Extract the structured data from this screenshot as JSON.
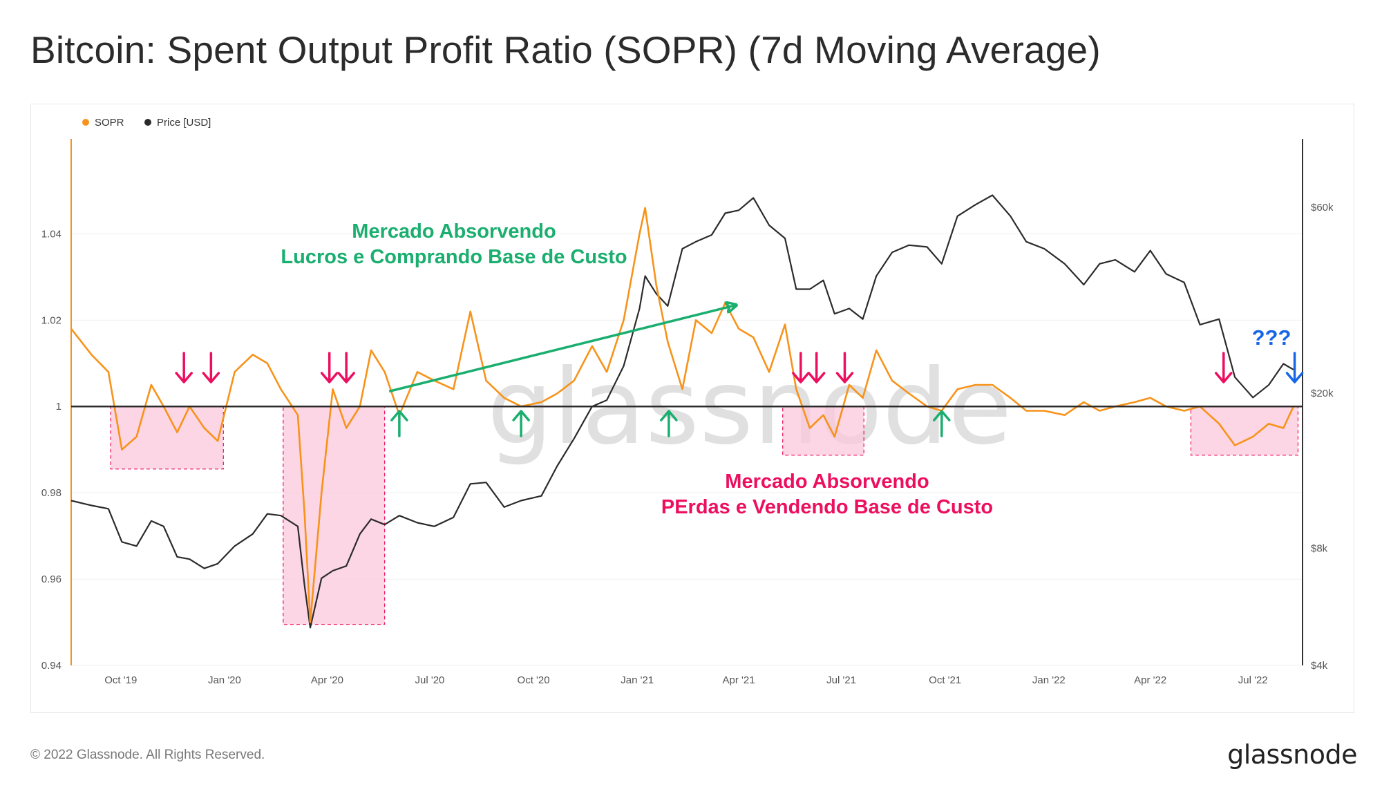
{
  "title": "Bitcoin: Spent Output Profit Ratio (SOPR) (7d Moving Average)",
  "footer": {
    "copyright": "© 2022 Glassnode. All Rights Reserved.",
    "logo": "glassnode"
  },
  "watermark": "glassnode",
  "colors": {
    "sopr": "#f7931a",
    "price": "#2b2b2b",
    "green": "#1aae6f",
    "red": "#ec0f5f",
    "blue": "#1766e8",
    "zone_fill": "#fbc8dc",
    "zone_border": "#ec0f5f"
  },
  "legend": [
    {
      "name": "SOPR",
      "color": "#f7931a"
    },
    {
      "name": "Price [USD]",
      "color": "#2b2b2b"
    }
  ],
  "annotations": {
    "green_line1": "Mercado Absorvendo",
    "green_line2": "Lucros e Comprando Base de Custo",
    "red_line1": "Mercado Absorvendo",
    "red_line2": "PErdas e Vendendo Base  de Custo",
    "question": "???"
  },
  "chart_data": {
    "type": "line",
    "x_axis": {
      "type": "date",
      "range": [
        "2019-08-18",
        "2022-08-14"
      ],
      "ticks": [
        "Oct '19",
        "Jan '20",
        "Apr '20",
        "Jul '20",
        "Oct '20",
        "Jan '21",
        "Apr '21",
        "Jul '21",
        "Oct '21",
        "Jan '22",
        "Apr '22",
        "Jul '22"
      ]
    },
    "y_left": {
      "series": "SOPR",
      "ticks": [
        "0.94",
        "0.96",
        "0.98",
        "1",
        "1.02",
        "1.04"
      ],
      "range": [
        0.94,
        1.062
      ]
    },
    "y_right": {
      "series": "Price [USD]",
      "scale": "log",
      "ticks": [
        "$4k",
        "$8k",
        "$20k",
        "$60k"
      ],
      "range": [
        4000,
        90000
      ]
    },
    "reference_line": 1.0,
    "series": [
      {
        "name": "SOPR",
        "x": [
          "2019-08-18",
          "2019-09-05",
          "2019-09-20",
          "2019-10-02",
          "2019-10-15",
          "2019-10-28",
          "2019-11-08",
          "2019-11-20",
          "2019-12-01",
          "2019-12-14",
          "2019-12-26",
          "2020-01-10",
          "2020-01-26",
          "2020-02-08",
          "2020-02-20",
          "2020-03-06",
          "2020-03-12",
          "2020-03-17",
          "2020-03-27",
          "2020-04-06",
          "2020-04-18",
          "2020-04-30",
          "2020-05-10",
          "2020-05-22",
          "2020-06-04",
          "2020-06-20",
          "2020-07-05",
          "2020-07-22",
          "2020-08-06",
          "2020-08-20",
          "2020-09-05",
          "2020-09-20",
          "2020-10-08",
          "2020-10-22",
          "2020-11-06",
          "2020-11-22",
          "2020-12-05",
          "2020-12-20",
          "2021-01-03",
          "2021-01-08",
          "2021-01-18",
          "2021-01-28",
          "2021-02-10",
          "2021-02-22",
          "2021-03-08",
          "2021-03-20",
          "2021-04-01",
          "2021-04-14",
          "2021-04-28",
          "2021-05-12",
          "2021-05-22",
          "2021-06-03",
          "2021-06-15",
          "2021-06-25",
          "2021-07-08",
          "2021-07-20",
          "2021-08-01",
          "2021-08-15",
          "2021-08-30",
          "2021-09-15",
          "2021-09-28",
          "2021-10-12",
          "2021-10-28",
          "2021-11-12",
          "2021-11-28",
          "2021-12-12",
          "2021-12-28",
          "2022-01-15",
          "2022-02-01",
          "2022-02-15",
          "2022-03-01",
          "2022-03-18",
          "2022-04-01",
          "2022-04-15",
          "2022-05-01",
          "2022-05-15",
          "2022-06-01",
          "2022-06-15",
          "2022-07-01",
          "2022-07-15",
          "2022-07-28",
          "2022-08-06"
        ],
        "values": [
          1.018,
          1.012,
          1.008,
          0.99,
          0.993,
          1.005,
          1.0,
          0.994,
          1.0,
          0.995,
          0.992,
          1.008,
          1.012,
          1.01,
          1.004,
          0.998,
          0.975,
          0.95,
          0.98,
          1.004,
          0.995,
          1.0,
          1.013,
          1.008,
          0.998,
          1.008,
          1.006,
          1.004,
          1.022,
          1.006,
          1.002,
          1.0,
          1.001,
          1.003,
          1.006,
          1.014,
          1.008,
          1.02,
          1.04,
          1.046,
          1.028,
          1.015,
          1.004,
          1.02,
          1.017,
          1.024,
          1.018,
          1.016,
          1.008,
          1.019,
          1.004,
          0.995,
          0.998,
          0.993,
          1.005,
          1.002,
          1.013,
          1.006,
          1.003,
          1.0,
          0.999,
          1.004,
          1.005,
          1.005,
          1.002,
          0.999,
          0.999,
          0.998,
          1.001,
          0.999,
          1.0,
          1.001,
          1.002,
          1.0,
          0.999,
          1.0,
          0.996,
          0.991,
          0.993,
          0.996,
          0.995,
          1.0
        ]
      },
      {
        "name": "Price [USD]",
        "x": [
          "2019-08-18",
          "2019-09-05",
          "2019-09-20",
          "2019-10-02",
          "2019-10-15",
          "2019-10-28",
          "2019-11-08",
          "2019-11-20",
          "2019-12-01",
          "2019-12-14",
          "2019-12-26",
          "2020-01-10",
          "2020-01-26",
          "2020-02-08",
          "2020-02-20",
          "2020-03-06",
          "2020-03-12",
          "2020-03-17",
          "2020-03-27",
          "2020-04-06",
          "2020-04-18",
          "2020-04-30",
          "2020-05-10",
          "2020-05-22",
          "2020-06-04",
          "2020-06-20",
          "2020-07-05",
          "2020-07-22",
          "2020-08-06",
          "2020-08-20",
          "2020-09-05",
          "2020-09-20",
          "2020-10-08",
          "2020-10-22",
          "2020-11-06",
          "2020-11-22",
          "2020-12-05",
          "2020-12-20",
          "2021-01-03",
          "2021-01-08",
          "2021-01-18",
          "2021-01-28",
          "2021-02-10",
          "2021-02-22",
          "2021-03-08",
          "2021-03-20",
          "2021-04-01",
          "2021-04-14",
          "2021-04-28",
          "2021-05-12",
          "2021-05-22",
          "2021-06-03",
          "2021-06-15",
          "2021-06-25",
          "2021-07-08",
          "2021-07-20",
          "2021-08-01",
          "2021-08-15",
          "2021-08-30",
          "2021-09-15",
          "2021-09-28",
          "2021-10-12",
          "2021-10-28",
          "2021-11-12",
          "2021-11-28",
          "2021-12-12",
          "2021-12-28",
          "2022-01-15",
          "2022-02-01",
          "2022-02-15",
          "2022-03-01",
          "2022-03-18",
          "2022-04-01",
          "2022-04-15",
          "2022-05-01",
          "2022-05-15",
          "2022-06-01",
          "2022-06-15",
          "2022-07-01",
          "2022-07-15",
          "2022-07-28",
          "2022-08-06"
        ],
        "values": [
          10600,
          10300,
          10100,
          8300,
          8100,
          9400,
          9100,
          7600,
          7500,
          7100,
          7300,
          8100,
          8700,
          9800,
          9700,
          9100,
          6400,
          5000,
          6700,
          7000,
          7200,
          8700,
          9500,
          9200,
          9700,
          9300,
          9100,
          9600,
          11700,
          11800,
          10200,
          10600,
          10900,
          13000,
          15300,
          18500,
          19200,
          23500,
          33000,
          40000,
          36000,
          33500,
          47000,
          49000,
          51000,
          58000,
          59000,
          63500,
          54000,
          50000,
          37000,
          37000,
          39000,
          32000,
          33000,
          31000,
          40000,
          46000,
          48000,
          47500,
          43000,
          57000,
          61000,
          64500,
          57000,
          49000,
          47000,
          43000,
          38000,
          43000,
          44000,
          41000,
          46500,
          40500,
          38500,
          30000,
          31000,
          22000,
          19500,
          21000,
          23800,
          23000
        ]
      }
    ],
    "highlight_zones": [
      {
        "x": [
          "2019-09-22",
          "2019-12-31"
        ],
        "y": [
          0.9855,
          1.0
        ]
      },
      {
        "x": [
          "2020-02-22",
          "2020-05-22"
        ],
        "y": [
          0.9495,
          1.0
        ]
      },
      {
        "x": [
          "2021-05-10",
          "2021-07-21"
        ],
        "y": [
          0.9887,
          1.0
        ]
      },
      {
        "x": [
          "2022-05-07",
          "2022-08-10"
        ],
        "y": [
          0.9887,
          1.0
        ]
      }
    ],
    "markers": {
      "down_red": [
        "2019-11-26",
        "2019-12-20",
        "2020-04-03",
        "2020-04-18",
        "2021-05-26",
        "2021-06-09",
        "2021-07-04",
        "2022-06-05"
      ],
      "up_green": [
        "2020-06-04",
        "2020-09-20",
        "2021-01-29",
        "2021-09-28"
      ],
      "down_blue": [
        "2022-08-07"
      ]
    },
    "trend_arrow": {
      "from": {
        "x": "2020-05-26",
        "y": 1.0035
      },
      "to": {
        "x": "2021-03-30",
        "y": 1.0235
      }
    }
  }
}
